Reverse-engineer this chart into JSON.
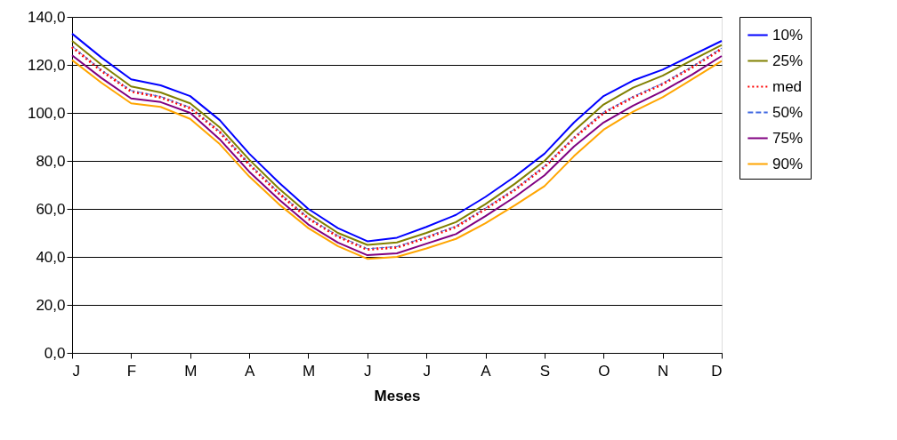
{
  "chart_data": {
    "type": "line",
    "xlabel": "Meses",
    "categories": [
      "J",
      null,
      "F",
      null,
      "M",
      null,
      "A",
      null,
      "M",
      null,
      "J",
      null,
      "J",
      null,
      "A",
      null,
      "S",
      null,
      "O",
      null,
      "N",
      null,
      "D"
    ],
    "ylim": [
      0,
      140
    ],
    "yticks": [
      {
        "value": 0,
        "label": "0,0"
      },
      {
        "value": 20,
        "label": "20,0"
      },
      {
        "value": 40,
        "label": "40,0"
      },
      {
        "value": 60,
        "label": "60,0"
      },
      {
        "value": 80,
        "label": "80,0"
      },
      {
        "value": 100,
        "label": "100,0"
      },
      {
        "value": 120,
        "label": "120,0"
      },
      {
        "value": 140,
        "label": "140,0"
      }
    ],
    "grid": "y",
    "legend": "right",
    "marker": "none",
    "series": [
      {
        "name": "10%",
        "color": "#0000ff",
        "line_style": "solid",
        "values": [
          133,
          123,
          114,
          111.5,
          107,
          97,
          83,
          71,
          60,
          52,
          46.5,
          48,
          52.5,
          57.5,
          65,
          73.5,
          83,
          96,
          107,
          113.5,
          118,
          124,
          130
        ]
      },
      {
        "name": "25%",
        "color": "#808000",
        "line_style": "solid",
        "values": [
          130,
          120,
          111,
          108.5,
          104,
          94,
          80.5,
          68.5,
          58,
          50,
          45,
          46,
          50,
          54.5,
          62,
          70.5,
          80,
          92.5,
          103.5,
          110.5,
          115.5,
          122,
          128.3
        ]
      },
      {
        "name": "med",
        "color": "#ff0000",
        "line_style": "dotted",
        "values": [
          127.5,
          117.5,
          109,
          106.5,
          102,
          92,
          78.5,
          66.5,
          56,
          48.5,
          43.1,
          44,
          48,
          52.5,
          60,
          68,
          77.5,
          89.5,
          100,
          106.5,
          112,
          119,
          126.7
        ]
      },
      {
        "name": "50%",
        "color": "#4169e1",
        "line_style": "dashed",
        "values": [
          127.8,
          117.8,
          109.3,
          106.8,
          102.3,
          92.3,
          78.8,
          66.8,
          56.3,
          48.8,
          43.4,
          44.3,
          48.3,
          52.8,
          60.3,
          68.3,
          77.8,
          89.8,
          100.3,
          106.8,
          112.3,
          119.3,
          127
        ]
      },
      {
        "name": "75%",
        "color": "#800080",
        "line_style": "solid",
        "values": [
          124,
          114.5,
          106,
          104.5,
          100,
          89,
          75.5,
          64,
          53.5,
          46,
          40.7,
          41.5,
          45.5,
          49.5,
          57,
          65,
          74,
          86,
          96,
          103,
          109,
          116,
          123.7
        ]
      },
      {
        "name": "90%",
        "color": "#ffa500",
        "line_style": "solid",
        "values": [
          122,
          112.5,
          104,
          102.5,
          97.5,
          87,
          73.5,
          62,
          52,
          44.5,
          39.2,
          40,
          43.5,
          47.5,
          54,
          61.5,
          69.5,
          82,
          93,
          100.5,
          106.5,
          114,
          121.6
        ]
      }
    ]
  }
}
